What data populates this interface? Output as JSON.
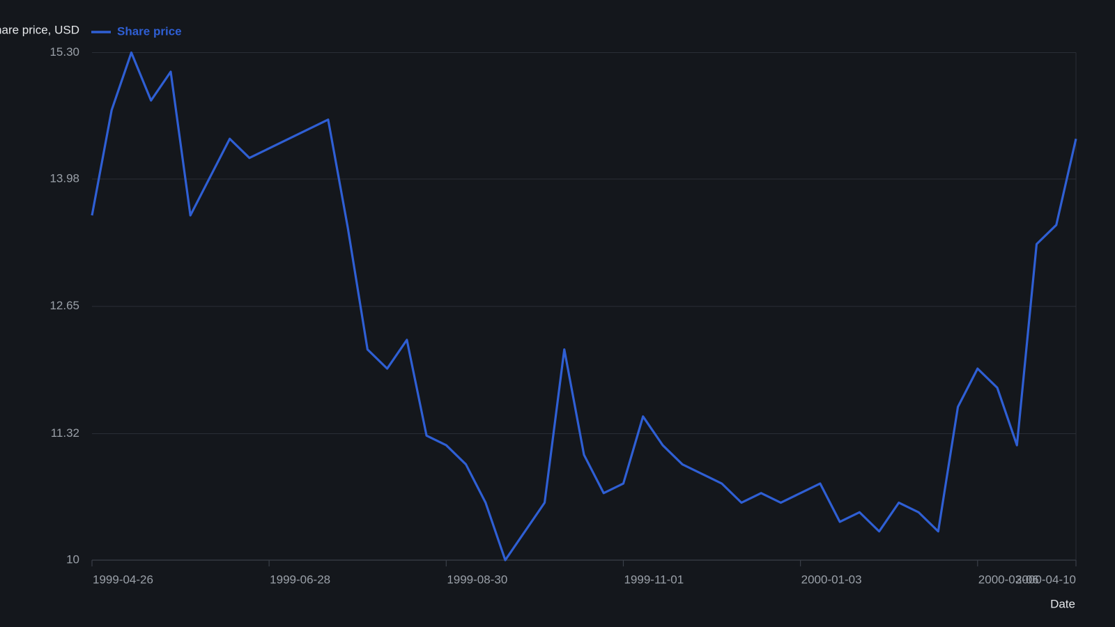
{
  "chart_data": {
    "type": "line",
    "y_label": "Share price, USD",
    "x_label": "Date",
    "x": [
      "1999-04-26",
      "1999-05-03",
      "1999-05-10",
      "1999-05-17",
      "1999-05-24",
      "1999-05-31",
      "1999-06-07",
      "1999-06-14",
      "1999-06-21",
      "1999-06-28",
      "1999-07-05",
      "1999-07-12",
      "1999-07-19",
      "1999-07-26",
      "1999-08-02",
      "1999-08-09",
      "1999-08-16",
      "1999-08-23",
      "1999-08-30",
      "1999-09-06",
      "1999-09-13",
      "1999-09-20",
      "1999-09-27",
      "1999-10-04",
      "1999-10-11",
      "1999-10-18",
      "1999-10-25",
      "1999-11-01",
      "1999-11-08",
      "1999-11-15",
      "1999-11-22",
      "1999-11-29",
      "1999-12-06",
      "1999-12-13",
      "1999-12-20",
      "1999-12-27",
      "2000-01-03",
      "2000-01-10",
      "2000-01-17",
      "2000-01-24",
      "2000-01-31",
      "2000-02-07",
      "2000-02-14",
      "2000-02-21",
      "2000-02-28",
      "2000-03-06",
      "2000-03-13",
      "2000-03-20",
      "2000-03-27",
      "2000-04-03",
      "2000-04-10"
    ],
    "series": [
      {
        "name": "Share price",
        "color": "#2f5fd4",
        "values": [
          13.6,
          14.7,
          15.3,
          14.8,
          15.1,
          13.6,
          14.0,
          14.4,
          14.2,
          14.3,
          14.4,
          14.5,
          14.6,
          13.47,
          12.2,
          12.0,
          12.3,
          11.3,
          11.2,
          11.0,
          10.6,
          10.0,
          10.3,
          10.6,
          12.2,
          11.1,
          10.7,
          10.8,
          11.5,
          11.2,
          11.0,
          10.9,
          10.8,
          10.6,
          10.7,
          10.6,
          10.7,
          10.8,
          10.4,
          10.5,
          10.3,
          10.6,
          10.5,
          10.3,
          11.6,
          12.0,
          11.8,
          11.2,
          13.3,
          13.5,
          14.4
        ]
      }
    ],
    "xlim": [
      "1999-04-26",
      "2000-04-10"
    ],
    "xticks": [
      "1999-04-26",
      "1999-06-28",
      "1999-08-30",
      "1999-11-01",
      "2000-01-03",
      "2000-03-06",
      "2000-04-10"
    ],
    "ylim": [
      10,
      15.3
    ],
    "yticks": [
      10,
      11.32,
      12.65,
      13.98,
      {
        "value": 15.3,
        "label": "15.30"
      }
    ],
    "grid": true
  }
}
